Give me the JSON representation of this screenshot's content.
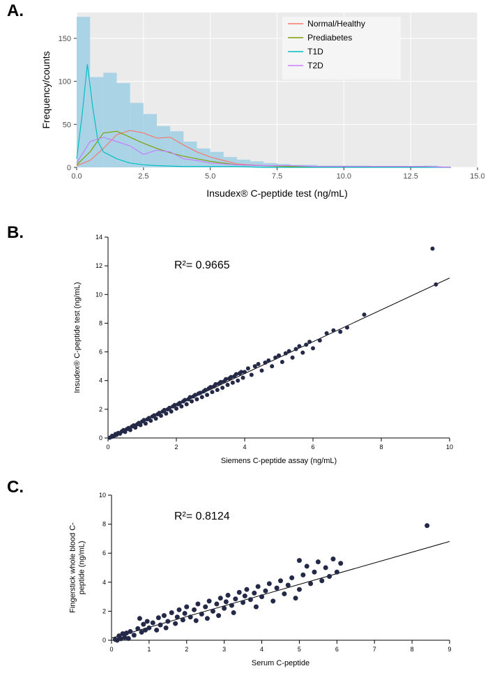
{
  "panelA": {
    "label": "A.",
    "type": "histogram+lines",
    "plot_background": "#ebebeb",
    "grid_color": "#ffffff",
    "xlabel": "Insudex® C-peptide test (ng/mL)",
    "ylabel": "Frequency/counts",
    "label_fontsize": 14,
    "xlim": [
      0,
      15
    ],
    "ylim": [
      0,
      180
    ],
    "xticks": [
      0.0,
      2.5,
      5.0,
      7.5,
      10.0,
      12.5,
      15.0
    ],
    "yticks": [
      0,
      50,
      100,
      150
    ],
    "hist": {
      "bin_width": 0.5,
      "fill": "#aad4e6",
      "edge": "#aad4e6",
      "bins": [
        {
          "x": 0.0,
          "count": 175
        },
        {
          "x": 0.5,
          "count": 105
        },
        {
          "x": 1.0,
          "count": 110
        },
        {
          "x": 1.5,
          "count": 98
        },
        {
          "x": 2.0,
          "count": 75
        },
        {
          "x": 2.5,
          "count": 62
        },
        {
          "x": 3.0,
          "count": 48
        },
        {
          "x": 3.5,
          "count": 42
        },
        {
          "x": 4.0,
          "count": 30
        },
        {
          "x": 4.5,
          "count": 22
        },
        {
          "x": 5.0,
          "count": 18
        },
        {
          "x": 5.5,
          "count": 12
        },
        {
          "x": 6.0,
          "count": 9
        },
        {
          "x": 6.5,
          "count": 7
        },
        {
          "x": 7.0,
          "count": 5
        },
        {
          "x": 7.5,
          "count": 4
        },
        {
          "x": 8.0,
          "count": 3
        },
        {
          "x": 8.5,
          "count": 3
        },
        {
          "x": 9.0,
          "count": 2
        },
        {
          "x": 9.5,
          "count": 2
        },
        {
          "x": 10.0,
          "count": 2
        },
        {
          "x": 10.5,
          "count": 2
        },
        {
          "x": 11.0,
          "count": 1
        },
        {
          "x": 11.5,
          "count": 1
        },
        {
          "x": 12.0,
          "count": 1
        },
        {
          "x": 12.5,
          "count": 1
        },
        {
          "x": 13.0,
          "count": 2
        },
        {
          "x": 13.5,
          "count": 1
        },
        {
          "x": 14.0,
          "count": 0
        }
      ]
    },
    "lines": [
      {
        "name": "Normal/Healthy",
        "color": "#f8766d",
        "width": 1.2,
        "points": [
          [
            0,
            2
          ],
          [
            0.5,
            8
          ],
          [
            1,
            22
          ],
          [
            1.5,
            38
          ],
          [
            2,
            43
          ],
          [
            2.5,
            40
          ],
          [
            3,
            34
          ],
          [
            3.5,
            35
          ],
          [
            4,
            26
          ],
          [
            4.5,
            18
          ],
          [
            5,
            12
          ],
          [
            5.5,
            8
          ],
          [
            6,
            4
          ],
          [
            6.5,
            3
          ],
          [
            7,
            2
          ],
          [
            8,
            1
          ],
          [
            9,
            1
          ],
          [
            10,
            1
          ],
          [
            11,
            1
          ],
          [
            12,
            1
          ],
          [
            13,
            1
          ],
          [
            14,
            0
          ]
        ]
      },
      {
        "name": "Prediabetes",
        "color": "#7da000",
        "width": 1.2,
        "points": [
          [
            0,
            3
          ],
          [
            0.5,
            18
          ],
          [
            1,
            40
          ],
          [
            1.5,
            42
          ],
          [
            2,
            35
          ],
          [
            2.5,
            28
          ],
          [
            3,
            22
          ],
          [
            3.5,
            17
          ],
          [
            4,
            13
          ],
          [
            4.5,
            10
          ],
          [
            5,
            7
          ],
          [
            5.5,
            5
          ],
          [
            6,
            3
          ],
          [
            7,
            2
          ],
          [
            8,
            1
          ],
          [
            9,
            1
          ],
          [
            10,
            1
          ],
          [
            11,
            1
          ],
          [
            12,
            1
          ],
          [
            13,
            1
          ],
          [
            14,
            0
          ]
        ]
      },
      {
        "name": "T1D",
        "color": "#00bfc4",
        "width": 1.2,
        "points": [
          [
            0,
            10
          ],
          [
            0.2,
            60
          ],
          [
            0.4,
            120
          ],
          [
            0.6,
            70
          ],
          [
            0.8,
            30
          ],
          [
            1,
            18
          ],
          [
            1.5,
            10
          ],
          [
            2,
            5
          ],
          [
            2.5,
            3
          ],
          [
            3,
            2
          ],
          [
            4,
            1
          ],
          [
            5,
            1
          ],
          [
            6,
            1
          ],
          [
            7,
            0
          ],
          [
            14,
            0
          ]
        ]
      },
      {
        "name": "T2D",
        "color": "#c77cff",
        "width": 1.2,
        "points": [
          [
            0,
            5
          ],
          [
            0.5,
            30
          ],
          [
            1,
            35
          ],
          [
            1.5,
            30
          ],
          [
            2,
            25
          ],
          [
            2.5,
            15
          ],
          [
            3,
            20
          ],
          [
            3.5,
            18
          ],
          [
            4,
            10
          ],
          [
            4.5,
            8
          ],
          [
            5,
            5
          ],
          [
            5.5,
            4
          ],
          [
            6,
            3
          ],
          [
            7,
            2
          ],
          [
            8,
            2
          ],
          [
            9,
            1
          ],
          [
            10,
            1
          ],
          [
            11,
            1
          ],
          [
            12,
            1
          ],
          [
            13,
            1
          ],
          [
            14,
            0
          ]
        ]
      }
    ],
    "legend": {
      "items": [
        {
          "label": "Normal/Healthy",
          "color": "#f8766d"
        },
        {
          "label": "Prediabetes",
          "color": "#7da000"
        },
        {
          "label": "T1D",
          "color": "#00bfc4"
        },
        {
          "label": "T2D",
          "color": "#c77cff"
        }
      ],
      "bg": "#f5f5f5"
    }
  },
  "panelB": {
    "label": "B.",
    "type": "scatter",
    "background": "#ffffff",
    "xlabel": "Siemens C-peptide assay (ng/mL)",
    "ylabel": "Insudex® C-peptide test (ng/mL)",
    "label_fontsize": 11,
    "xlim": [
      0,
      10
    ],
    "ylim": [
      0,
      14
    ],
    "xticks": [
      0,
      2,
      4,
      6,
      8,
      10
    ],
    "yticks": [
      0,
      2,
      4,
      6,
      8,
      10,
      12,
      14
    ],
    "point_color": "#232946",
    "point_radius": 3,
    "fit": {
      "slope": 1.11,
      "intercept": 0.05,
      "color": "#000000",
      "width": 1
    },
    "annotation": "R²= 0.9665",
    "points": [
      [
        0.05,
        0.02
      ],
      [
        0.1,
        0.08
      ],
      [
        0.12,
        0.15
      ],
      [
        0.15,
        0.1
      ],
      [
        0.2,
        0.18
      ],
      [
        0.22,
        0.28
      ],
      [
        0.25,
        0.22
      ],
      [
        0.3,
        0.35
      ],
      [
        0.35,
        0.3
      ],
      [
        0.4,
        0.45
      ],
      [
        0.45,
        0.55
      ],
      [
        0.5,
        0.42
      ],
      [
        0.55,
        0.62
      ],
      [
        0.6,
        0.7
      ],
      [
        0.65,
        0.55
      ],
      [
        0.7,
        0.8
      ],
      [
        0.75,
        0.88
      ],
      [
        0.8,
        0.72
      ],
      [
        0.85,
        0.95
      ],
      [
        0.9,
        1.05
      ],
      [
        0.95,
        0.9
      ],
      [
        1.0,
        1.15
      ],
      [
        1.05,
        1.25
      ],
      [
        1.1,
        1.0
      ],
      [
        1.15,
        1.3
      ],
      [
        1.2,
        1.4
      ],
      [
        1.25,
        1.2
      ],
      [
        1.3,
        1.5
      ],
      [
        1.35,
        1.58
      ],
      [
        1.4,
        1.35
      ],
      [
        1.45,
        1.65
      ],
      [
        1.5,
        1.75
      ],
      [
        1.55,
        1.55
      ],
      [
        1.6,
        1.85
      ],
      [
        1.65,
        1.95
      ],
      [
        1.7,
        1.7
      ],
      [
        1.75,
        2.0
      ],
      [
        1.8,
        2.1
      ],
      [
        1.85,
        1.85
      ],
      [
        1.9,
        2.2
      ],
      [
        1.95,
        2.3
      ],
      [
        2.0,
        2.05
      ],
      [
        2.05,
        2.35
      ],
      [
        2.1,
        2.45
      ],
      [
        2.15,
        2.2
      ],
      [
        2.2,
        2.55
      ],
      [
        2.25,
        2.65
      ],
      [
        2.3,
        2.35
      ],
      [
        2.35,
        2.7
      ],
      [
        2.4,
        2.85
      ],
      [
        2.45,
        2.55
      ],
      [
        2.5,
        2.9
      ],
      [
        2.55,
        3.0
      ],
      [
        2.6,
        2.7
      ],
      [
        2.65,
        3.1
      ],
      [
        2.7,
        3.15
      ],
      [
        2.75,
        2.85
      ],
      [
        2.8,
        3.25
      ],
      [
        2.85,
        3.35
      ],
      [
        2.9,
        3.0
      ],
      [
        2.95,
        3.45
      ],
      [
        3.0,
        3.55
      ],
      [
        3.05,
        3.2
      ],
      [
        3.1,
        3.6
      ],
      [
        3.15,
        3.75
      ],
      [
        3.2,
        3.35
      ],
      [
        3.25,
        3.8
      ],
      [
        3.3,
        3.9
      ],
      [
        3.35,
        3.5
      ],
      [
        3.4,
        3.95
      ],
      [
        3.45,
        4.1
      ],
      [
        3.5,
        3.7
      ],
      [
        3.55,
        4.15
      ],
      [
        3.6,
        4.25
      ],
      [
        3.65,
        3.85
      ],
      [
        3.7,
        4.3
      ],
      [
        3.75,
        4.45
      ],
      [
        3.8,
        4.0
      ],
      [
        3.85,
        4.5
      ],
      [
        3.9,
        4.6
      ],
      [
        3.95,
        4.2
      ],
      [
        4.0,
        4.6
      ],
      [
        4.1,
        4.85
      ],
      [
        4.2,
        4.4
      ],
      [
        4.3,
        5.0
      ],
      [
        4.4,
        5.15
      ],
      [
        4.5,
        4.7
      ],
      [
        4.6,
        5.25
      ],
      [
        4.7,
        5.4
      ],
      [
        4.8,
        5.0
      ],
      [
        4.9,
        5.6
      ],
      [
        5.0,
        5.75
      ],
      [
        5.1,
        5.3
      ],
      [
        5.2,
        5.9
      ],
      [
        5.3,
        6.05
      ],
      [
        5.4,
        5.6
      ],
      [
        5.5,
        6.2
      ],
      [
        5.6,
        6.4
      ],
      [
        5.7,
        5.95
      ],
      [
        5.8,
        6.5
      ],
      [
        5.9,
        6.7
      ],
      [
        6.0,
        6.25
      ],
      [
        6.2,
        6.8
      ],
      [
        6.4,
        7.3
      ],
      [
        6.6,
        7.5
      ],
      [
        6.8,
        7.4
      ],
      [
        7.0,
        7.7
      ],
      [
        7.5,
        8.6
      ],
      [
        9.5,
        13.2
      ],
      [
        9.6,
        10.7
      ]
    ]
  },
  "panelC": {
    "label": "C.",
    "type": "scatter",
    "background": "#ffffff",
    "xlabel": "Serum C-peptide",
    "ylabel": "Fingerstick whole blood C-\npeptide (ng/mL)",
    "label_fontsize": 11,
    "xlim": [
      0,
      9
    ],
    "ylim": [
      0,
      10
    ],
    "xticks": [
      0,
      1,
      2,
      3,
      4,
      5,
      6,
      7,
      8,
      9
    ],
    "yticks": [
      0,
      2,
      4,
      6,
      8,
      10
    ],
    "point_color": "#232946",
    "point_radius": 3.5,
    "fit": {
      "slope": 0.74,
      "intercept": 0.15,
      "color": "#000000",
      "width": 1
    },
    "annotation": "R²= 0.8124",
    "points": [
      [
        0.1,
        0.05
      ],
      [
        0.15,
        0.0
      ],
      [
        0.2,
        0.3
      ],
      [
        0.25,
        0.1
      ],
      [
        0.3,
        0.45
      ],
      [
        0.35,
        0.2
      ],
      [
        0.4,
        0.5
      ],
      [
        0.45,
        0.12
      ],
      [
        0.5,
        0.6
      ],
      [
        0.6,
        0.35
      ],
      [
        0.7,
        0.8
      ],
      [
        0.75,
        1.5
      ],
      [
        0.8,
        0.55
      ],
      [
        0.85,
        1.1
      ],
      [
        0.9,
        0.7
      ],
      [
        0.95,
        1.3
      ],
      [
        1.0,
        0.85
      ],
      [
        1.1,
        1.2
      ],
      [
        1.2,
        0.7
      ],
      [
        1.25,
        1.55
      ],
      [
        1.3,
        1.05
      ],
      [
        1.4,
        1.7
      ],
      [
        1.45,
        0.85
      ],
      [
        1.5,
        1.3
      ],
      [
        1.6,
        1.9
      ],
      [
        1.7,
        1.15
      ],
      [
        1.75,
        1.6
      ],
      [
        1.8,
        2.1
      ],
      [
        1.9,
        1.4
      ],
      [
        1.95,
        1.85
      ],
      [
        2.0,
        2.3
      ],
      [
        2.1,
        1.6
      ],
      [
        2.2,
        2.1
      ],
      [
        2.25,
        1.35
      ],
      [
        2.3,
        2.5
      ],
      [
        2.4,
        1.8
      ],
      [
        2.5,
        2.3
      ],
      [
        2.55,
        1.5
      ],
      [
        2.6,
        2.7
      ],
      [
        2.7,
        2.0
      ],
      [
        2.8,
        2.5
      ],
      [
        2.85,
        1.7
      ],
      [
        2.9,
        2.9
      ],
      [
        3.0,
        2.2
      ],
      [
        3.05,
        2.65
      ],
      [
        3.1,
        3.1
      ],
      [
        3.2,
        2.4
      ],
      [
        3.25,
        1.9
      ],
      [
        3.3,
        2.85
      ],
      [
        3.4,
        3.3
      ],
      [
        3.5,
        2.6
      ],
      [
        3.55,
        3.05
      ],
      [
        3.6,
        3.5
      ],
      [
        3.7,
        2.8
      ],
      [
        3.8,
        3.25
      ],
      [
        3.85,
        2.3
      ],
      [
        3.9,
        3.7
      ],
      [
        4.0,
        3.0
      ],
      [
        4.1,
        3.4
      ],
      [
        4.2,
        3.9
      ],
      [
        4.3,
        2.7
      ],
      [
        4.4,
        3.6
      ],
      [
        4.5,
        4.1
      ],
      [
        4.6,
        3.2
      ],
      [
        4.7,
        3.8
      ],
      [
        4.8,
        4.3
      ],
      [
        4.9,
        2.9
      ],
      [
        5.0,
        5.5
      ],
      [
        5.0,
        3.5
      ],
      [
        5.1,
        4.5
      ],
      [
        5.2,
        5.1
      ],
      [
        5.3,
        3.9
      ],
      [
        5.4,
        4.7
      ],
      [
        5.5,
        5.4
      ],
      [
        5.6,
        4.1
      ],
      [
        5.7,
        5.0
      ],
      [
        5.8,
        4.4
      ],
      [
        5.9,
        5.6
      ],
      [
        6.0,
        4.7
      ],
      [
        6.1,
        5.3
      ],
      [
        8.4,
        7.9
      ]
    ]
  }
}
